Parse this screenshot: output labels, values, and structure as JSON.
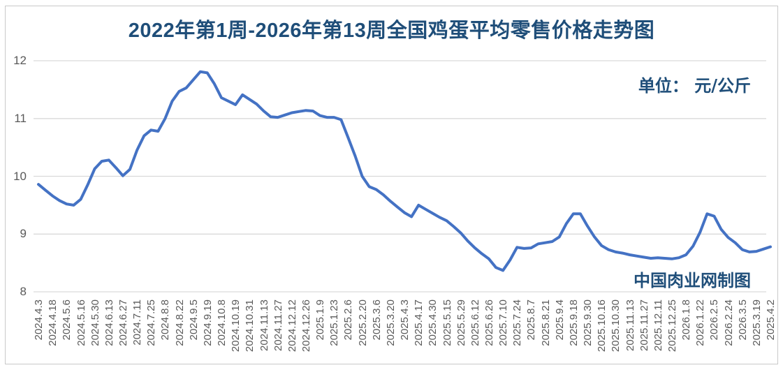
{
  "chart_data": {
    "type": "line",
    "title": "2022年第1周-2026年第13周全国鸡蛋平均零售价格走势图",
    "unit_label": "单位： 元/公斤",
    "watermark": "中国肉业网制图",
    "ylabel": "元/公斤",
    "ylim": [
      8,
      12
    ],
    "y_ticks": [
      12,
      11,
      10,
      9,
      8
    ],
    "grid": "horizontal",
    "legend": "none",
    "x_label_every_n_points": 2,
    "x_labels": [
      "2024.4.3",
      "2024.4.18",
      "2024.5.6",
      "2024.5.16",
      "2024.5.30",
      "2024.6.13",
      "2024.6.27",
      "2024.7.11",
      "2024.7.25",
      "2024.8.8",
      "2024.8.22",
      "2024.9.5",
      "2024.9.19",
      "2024.10.8",
      "2024.10.19",
      "2024.10.31",
      "2024.11.13",
      "2024.11.27",
      "2024.12.12",
      "2024.12.26",
      "2025.1.9",
      "2025.1.23",
      "2025.2.6",
      "2025.2.20",
      "2025.3.6",
      "2025.3.20",
      "2025.4.3",
      "2025.4.17",
      "2025.4.30",
      "2025.5.15",
      "2025.5.29",
      "2025.6.12",
      "2025.6.26",
      "2025.7.10",
      "2025.7.24",
      "2025.8.7",
      "2025.8.21",
      "2025.9.4",
      "2025.9.18",
      "2025.9.30",
      "2025.10.16",
      "2025.10.30",
      "2025.11.13",
      "2025.11.27",
      "2025.12.11",
      "2025.12.25",
      "2026.1.8",
      "2026.1.22",
      "2026.2.5",
      "2026.2.24",
      "2026.3.5",
      "2025.3.19",
      "2025.4.2"
    ],
    "values": [
      9.86,
      9.76,
      9.66,
      9.58,
      9.52,
      9.5,
      9.6,
      9.85,
      10.13,
      10.26,
      10.28,
      10.15,
      10.01,
      10.12,
      10.45,
      10.7,
      10.8,
      10.78,
      11.0,
      11.3,
      11.47,
      11.53,
      11.67,
      11.81,
      11.79,
      11.6,
      11.36,
      11.3,
      11.24,
      11.41,
      11.33,
      11.25,
      11.13,
      11.03,
      11.02,
      11.06,
      11.1,
      11.12,
      11.14,
      11.13,
      11.05,
      11.02,
      11.02,
      10.98,
      10.67,
      10.35,
      10.0,
      9.82,
      9.77,
      9.68,
      9.57,
      9.47,
      9.37,
      9.3,
      9.5,
      9.43,
      9.36,
      9.29,
      9.23,
      9.13,
      9.02,
      8.88,
      8.76,
      8.66,
      8.57,
      8.42,
      8.37,
      8.55,
      8.77,
      8.75,
      8.76,
      8.83,
      8.85,
      8.87,
      8.95,
      9.18,
      9.35,
      9.35,
      9.14,
      8.95,
      8.8,
      8.73,
      8.69,
      8.67,
      8.64,
      8.62,
      8.6,
      8.58,
      8.59,
      8.58,
      8.57,
      8.59,
      8.64,
      8.79,
      9.03,
      9.35,
      9.31,
      9.08,
      8.94,
      8.85,
      8.73,
      8.69,
      8.7,
      8.74,
      8.78
    ],
    "colors": {
      "line": "#4472C4",
      "gridline": "#D9D9D9",
      "axis_text": "#595959",
      "accent_text": "#1F4E79",
      "frame_border": "#C9C9C9"
    }
  }
}
